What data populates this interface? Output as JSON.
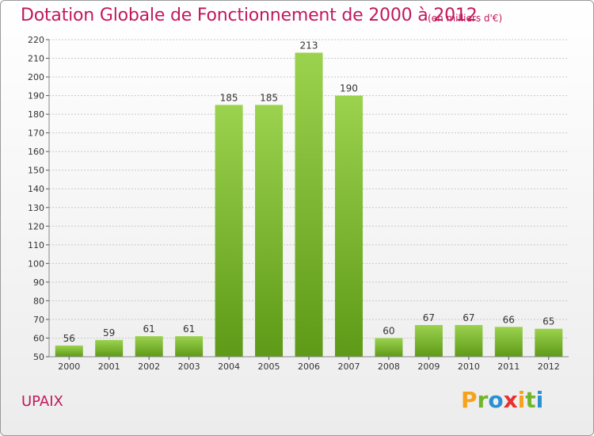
{
  "header": {
    "title": "Dotation Globale de Fonctionnement de 2000 à 2012",
    "unit": "(en milliers d'€)"
  },
  "footer": {
    "commune": "UPAIX",
    "logo": {
      "letters": [
        "P",
        "r",
        "o",
        "x",
        "i",
        "t",
        "i"
      ],
      "colors": [
        "#f7a21b",
        "#6fb62c",
        "#2a8fd6",
        "#e8312f",
        "#f7a21b",
        "#6fb62c",
        "#2a8fd6"
      ]
    }
  },
  "chart_data": {
    "type": "bar",
    "categories": [
      "2000",
      "2001",
      "2002",
      "2003",
      "2004",
      "2005",
      "2006",
      "2007",
      "2008",
      "2009",
      "2010",
      "2011",
      "2012"
    ],
    "values": [
      56,
      59,
      61,
      61,
      185,
      185,
      213,
      190,
      60,
      67,
      67,
      66,
      65
    ],
    "title": "Dotation Globale de Fonctionnement de 2000 à 2012",
    "ylim": [
      50,
      220
    ],
    "yticks": [
      50,
      60,
      70,
      80,
      90,
      100,
      110,
      120,
      130,
      140,
      150,
      160,
      170,
      180,
      190,
      200,
      210,
      220
    ],
    "grid": true,
    "bar_color_top": "#9bd24e",
    "bar_color_bottom": "#5e9a17"
  }
}
